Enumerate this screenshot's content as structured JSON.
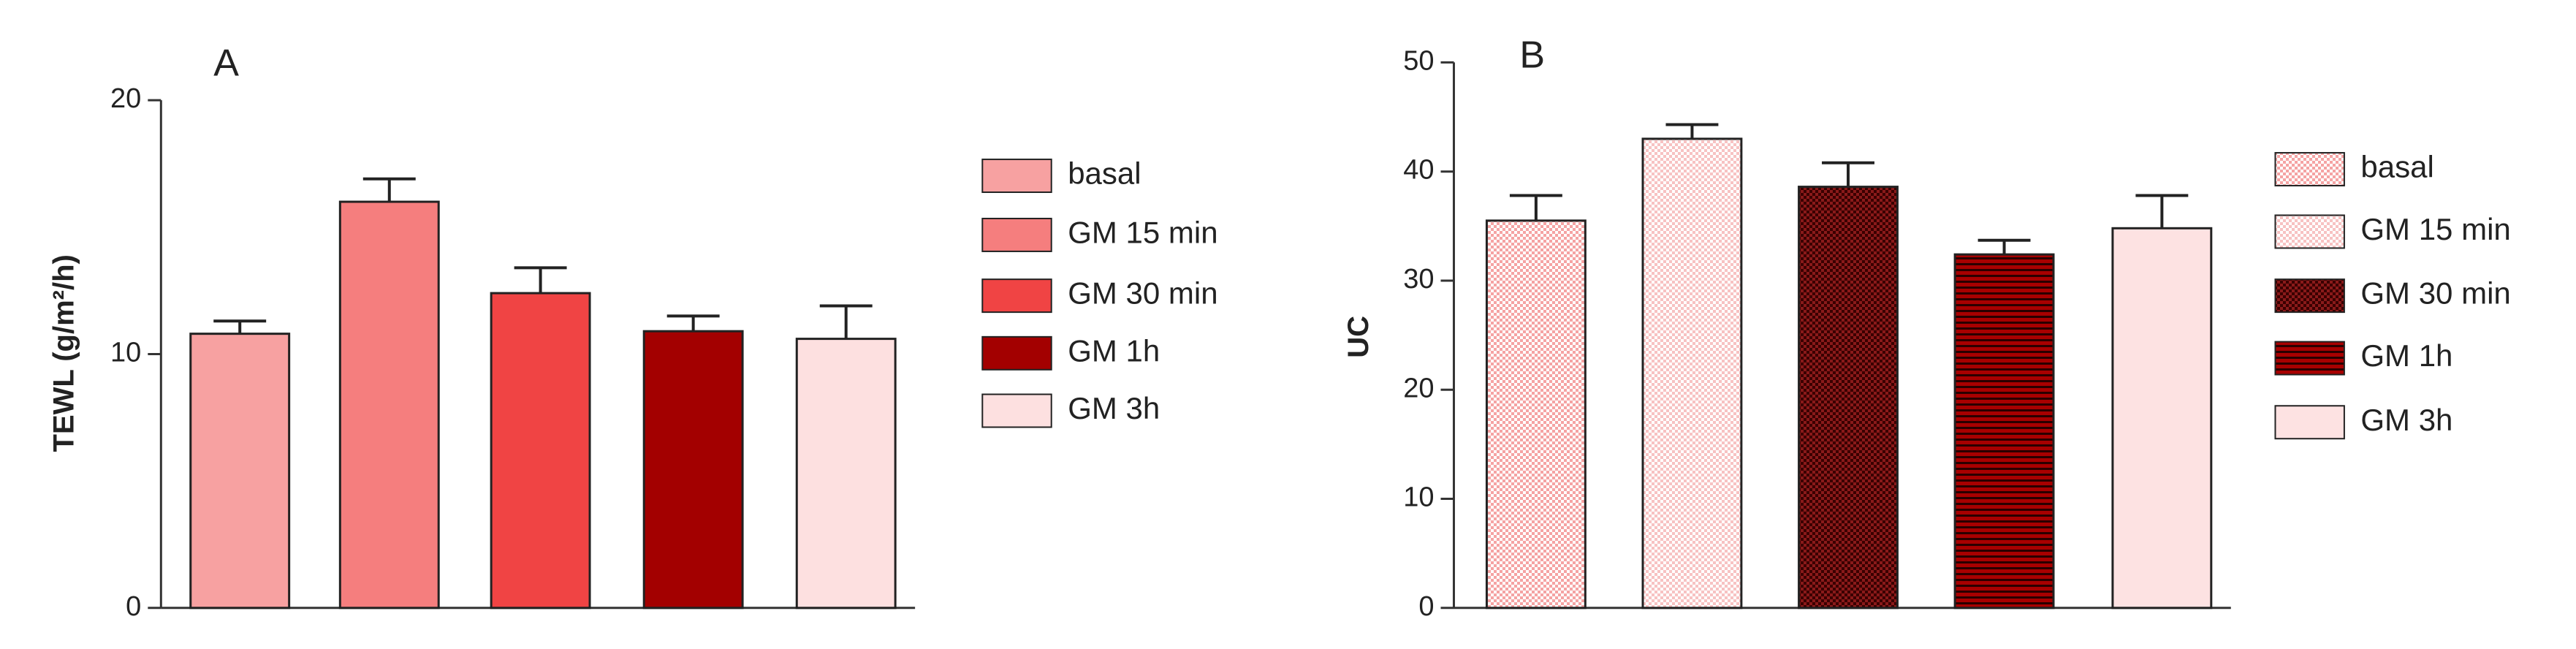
{
  "chart_data": [
    {
      "type": "bar",
      "panel_label": "A",
      "y_label": "TEWL (g/m²/h)",
      "categories": [
        "basal",
        "GM 15 min",
        "GM 30 min",
        "GM 1h",
        "GM 3h"
      ],
      "values": [
        10.8,
        16.0,
        12.4,
        10.9,
        10.6
      ],
      "errors": [
        0.5,
        0.9,
        1.0,
        0.6,
        1.3
      ],
      "colors": [
        "#f7a1a1",
        "#f57e7e",
        "#f04444",
        "#a30000",
        "#fde0e0"
      ],
      "patterns": [
        "plain",
        "plain",
        "plain",
        "plain",
        "plain"
      ],
      "ylim": [
        0,
        20
      ],
      "yticks": [
        0,
        10,
        20
      ]
    },
    {
      "type": "bar",
      "panel_label": "B",
      "y_label": "UC",
      "categories": [
        "basal",
        "GM 15 min",
        "GM 30 min",
        "GM 1h",
        "GM 3h"
      ],
      "values": [
        35.5,
        43.0,
        38.6,
        32.4,
        34.8
      ],
      "errors": [
        2.3,
        1.3,
        2.2,
        1.3,
        3.0
      ],
      "colors": [
        "#f5a3a3",
        "#f7c2c2",
        "#8a1a1a",
        "#a80000",
        "#fde2e2"
      ],
      "patterns": [
        "fine",
        "fine",
        "checker",
        "stripes",
        "plain"
      ],
      "ylim": [
        0,
        50
      ],
      "yticks": [
        0,
        10,
        20,
        30,
        40,
        50
      ]
    }
  ]
}
